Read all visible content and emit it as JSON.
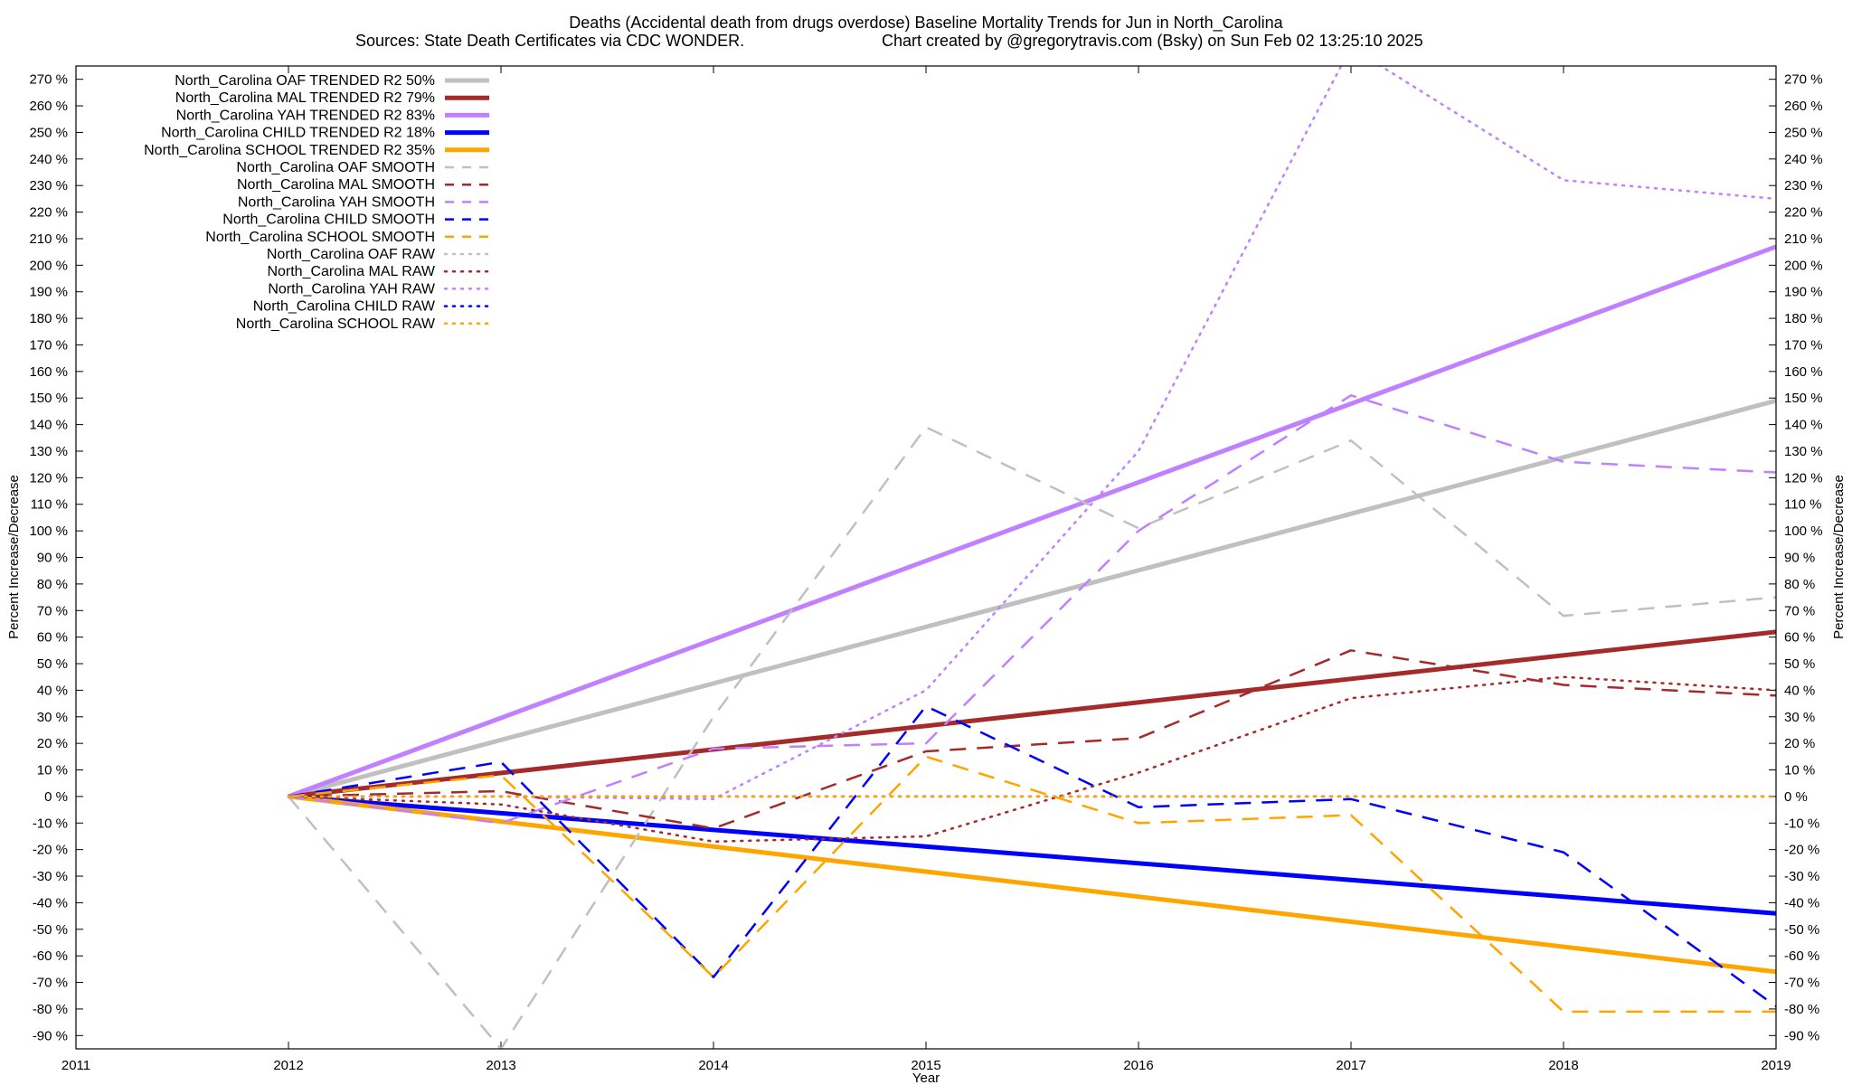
{
  "chart_data": {
    "type": "line",
    "title_line1": "Deaths (Accidental death from drugs overdose)  Baseline Mortality Trends for Jun in North_Carolina",
    "title_line2_left": "Sources: State Death Certificates via CDC WONDER.",
    "title_line2_right": "Chart created by @gregorytravis.com (Bsky) on Sun Feb 02 13:25:10 2025",
    "xlabel": "Year",
    "ylabel_left": "Percent Increase/Decrease",
    "ylabel_right": "Percent Increase/Decrease",
    "xlim": [
      2011,
      2019
    ],
    "ylim": [
      -95,
      275
    ],
    "x_ticks": [
      2011,
      2012,
      2013,
      2014,
      2015,
      2016,
      2017,
      2018,
      2019
    ],
    "y_ticks": [
      -90,
      -80,
      -70,
      -60,
      -50,
      -40,
      -30,
      -20,
      -10,
      0,
      10,
      20,
      30,
      40,
      50,
      60,
      70,
      80,
      90,
      100,
      110,
      120,
      130,
      140,
      150,
      160,
      170,
      180,
      190,
      200,
      210,
      220,
      230,
      240,
      250,
      260,
      270
    ],
    "y_tick_suffix": " %",
    "grid": false,
    "legend_position": "top-left",
    "series": [
      {
        "name": "North_Carolina OAF TRENDED R2  50%",
        "color": "#c0c0c0",
        "style": "solid",
        "width": 5,
        "x": [
          2012,
          2019
        ],
        "y": [
          0,
          149
        ]
      },
      {
        "name": "North_Carolina MAL TRENDED R2  79%",
        "color": "#a52a2a",
        "style": "solid",
        "width": 5,
        "x": [
          2012,
          2019
        ],
        "y": [
          0,
          62
        ]
      },
      {
        "name": "North_Carolina YAH TRENDED R2  83%",
        "color": "#c080ff",
        "style": "solid",
        "width": 5,
        "x": [
          2012,
          2019
        ],
        "y": [
          0,
          207
        ]
      },
      {
        "name": "North_Carolina CHILD TRENDED R2  18%",
        "color": "#0000ff",
        "style": "solid",
        "width": 5,
        "x": [
          2012,
          2019
        ],
        "y": [
          0,
          -44
        ]
      },
      {
        "name": "North_Carolina SCHOOL TRENDED R2  35%",
        "color": "#ffa500",
        "style": "solid",
        "width": 5,
        "x": [
          2012,
          2019
        ],
        "y": [
          0,
          -66
        ]
      },
      {
        "name": "North_Carolina OAF SMOOTH",
        "color": "#c0c0c0",
        "style": "dashed",
        "width": 2.5,
        "x": [
          2012,
          2013,
          2014,
          2015,
          2016,
          2017,
          2018,
          2019
        ],
        "y": [
          0,
          -95,
          30,
          139,
          101,
          134,
          68,
          75
        ]
      },
      {
        "name": "North_Carolina MAL SMOOTH",
        "color": "#a52a2a",
        "style": "dashed",
        "width": 2.5,
        "x": [
          2012,
          2013,
          2014,
          2015,
          2016,
          2017,
          2018,
          2019
        ],
        "y": [
          0,
          2,
          -12,
          17,
          22,
          55,
          42,
          38
        ]
      },
      {
        "name": "North_Carolina YAH SMOOTH",
        "color": "#c080ff",
        "style": "dashed",
        "width": 2.5,
        "x": [
          2012,
          2013,
          2014,
          2015,
          2016,
          2017,
          2018,
          2019
        ],
        "y": [
          0,
          -10,
          18,
          20,
          100,
          151,
          126,
          122
        ]
      },
      {
        "name": "North_Carolina CHILD SMOOTH",
        "color": "#0000ff",
        "style": "dashed",
        "width": 2.5,
        "x": [
          2012,
          2013,
          2014,
          2015,
          2016,
          2017,
          2018,
          2019
        ],
        "y": [
          0,
          13,
          -68,
          34,
          -4,
          -1,
          -21,
          -79
        ]
      },
      {
        "name": "North_Carolina SCHOOL SMOOTH",
        "color": "#ffa500",
        "style": "dashed",
        "width": 2.5,
        "x": [
          2012,
          2013,
          2014,
          2015,
          2016,
          2017,
          2018,
          2019
        ],
        "y": [
          0,
          8,
          -68,
          15,
          -10,
          -7,
          -81,
          -81
        ]
      },
      {
        "name": "North_Carolina OAF RAW",
        "color": "#c0c0c0",
        "style": "dotted",
        "width": 2.5,
        "x": [
          2012,
          2019
        ],
        "y": [
          0,
          0
        ]
      },
      {
        "name": "North_Carolina MAL RAW",
        "color": "#a52a2a",
        "style": "dotted",
        "width": 2.5,
        "x": [
          2012,
          2013,
          2014,
          2015,
          2016,
          2017,
          2018,
          2019
        ],
        "y": [
          0,
          -3,
          -17,
          -15,
          9,
          37,
          45,
          40
        ]
      },
      {
        "name": "North_Carolina YAH RAW",
        "color": "#c080ff",
        "style": "dotted",
        "width": 2.5,
        "x": [
          2012,
          2013,
          2014,
          2015,
          2016,
          2017,
          2018,
          2019
        ],
        "y": [
          0,
          0,
          -1,
          40,
          130,
          282,
          232,
          225
        ]
      },
      {
        "name": "North_Carolina CHILD RAW",
        "color": "#0000ff",
        "style": "dotted",
        "width": 2.5,
        "x": [
          2012,
          2019
        ],
        "y": [
          0,
          0
        ]
      },
      {
        "name": "North_Carolina SCHOOL RAW",
        "color": "#ffa500",
        "style": "dotted",
        "width": 2.5,
        "x": [
          2012,
          2019
        ],
        "y": [
          0,
          0
        ]
      }
    ]
  }
}
